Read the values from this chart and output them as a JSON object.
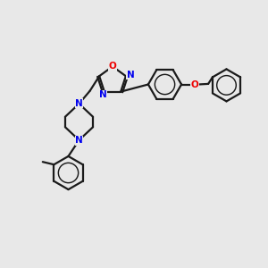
{
  "bg_color": "#e8e8e8",
  "bond_color": "#1a1a1a",
  "nitrogen_color": "#0000ee",
  "oxygen_color": "#ee0000",
  "line_width": 1.6,
  "figsize": [
    3.0,
    3.0
  ],
  "dpi": 100,
  "xlim": [
    0,
    10
  ],
  "ylim": [
    0,
    10
  ]
}
